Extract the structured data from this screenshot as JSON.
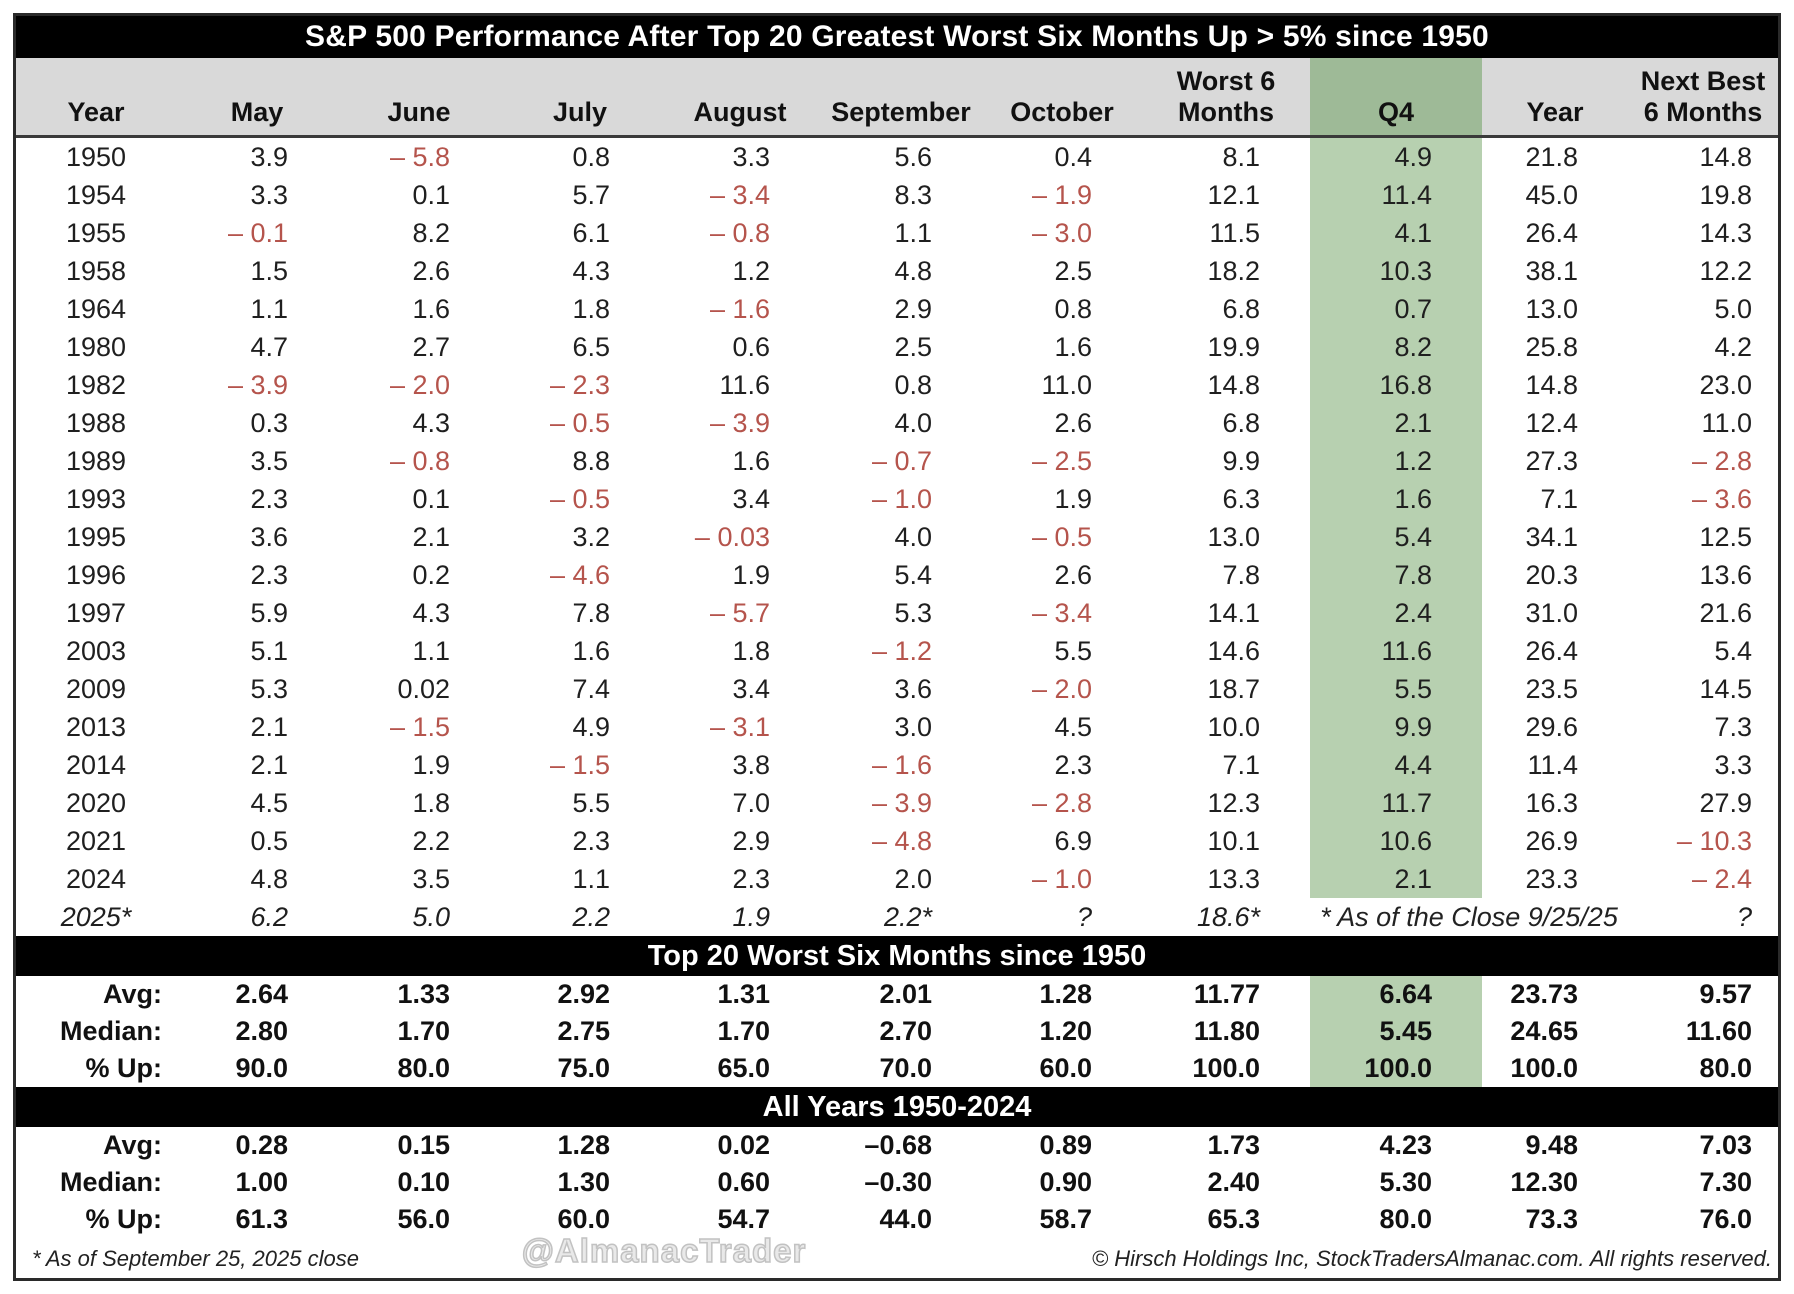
{
  "title": "S&P 500 Performance After Top 20 Greatest Worst Six Months Up > 5% since 1950",
  "colors": {
    "negative_text": "#b5544c",
    "q4_header_highlight": "#9eba97",
    "q4_body_highlight": "#b7d0b0",
    "header_bg": "#d9d9d9",
    "bar_bg": "#000000",
    "bar_text": "#ffffff"
  },
  "chart_data": {
    "type": "table",
    "title": "S&P 500 Performance After Top 20 Greatest Worst Six Months Up > 5% since 1950",
    "columns": [
      "Year",
      "May",
      "June",
      "July",
      "August",
      "September",
      "October",
      "Worst 6\nMonths",
      "Q4",
      "Year",
      "Next Best\n6 Months"
    ],
    "highlighted_column": "Q4",
    "rows": [
      {
        "year": "1950",
        "values": [
          "3.9",
          "– 5.8",
          "0.8",
          "3.3",
          "5.6",
          "0.4",
          "8.1",
          "4.9",
          "21.8",
          "14.8"
        ]
      },
      {
        "year": "1954",
        "values": [
          "3.3",
          "0.1",
          "5.7",
          "– 3.4",
          "8.3",
          "– 1.9",
          "12.1",
          "11.4",
          "45.0",
          "19.8"
        ]
      },
      {
        "year": "1955",
        "values": [
          "– 0.1",
          "8.2",
          "6.1",
          "– 0.8",
          "1.1",
          "– 3.0",
          "11.5",
          "4.1",
          "26.4",
          "14.3"
        ]
      },
      {
        "year": "1958",
        "values": [
          "1.5",
          "2.6",
          "4.3",
          "1.2",
          "4.8",
          "2.5",
          "18.2",
          "10.3",
          "38.1",
          "12.2"
        ]
      },
      {
        "year": "1964",
        "values": [
          "1.1",
          "1.6",
          "1.8",
          "– 1.6",
          "2.9",
          "0.8",
          "6.8",
          "0.7",
          "13.0",
          "5.0"
        ]
      },
      {
        "year": "1980",
        "values": [
          "4.7",
          "2.7",
          "6.5",
          "0.6",
          "2.5",
          "1.6",
          "19.9",
          "8.2",
          "25.8",
          "4.2"
        ]
      },
      {
        "year": "1982",
        "values": [
          "– 3.9",
          "– 2.0",
          "– 2.3",
          "11.6",
          "0.8",
          "11.0",
          "14.8",
          "16.8",
          "14.8",
          "23.0"
        ]
      },
      {
        "year": "1988",
        "values": [
          "0.3",
          "4.3",
          "– 0.5",
          "– 3.9",
          "4.0",
          "2.6",
          "6.8",
          "2.1",
          "12.4",
          "11.0"
        ]
      },
      {
        "year": "1989",
        "values": [
          "3.5",
          "– 0.8",
          "8.8",
          "1.6",
          "– 0.7",
          "– 2.5",
          "9.9",
          "1.2",
          "27.3",
          "– 2.8"
        ]
      },
      {
        "year": "1993",
        "values": [
          "2.3",
          "0.1",
          "– 0.5",
          "3.4",
          "– 1.0",
          "1.9",
          "6.3",
          "1.6",
          "7.1",
          "– 3.6"
        ]
      },
      {
        "year": "1995",
        "values": [
          "3.6",
          "2.1",
          "3.2",
          "– 0.03",
          "4.0",
          "– 0.5",
          "13.0",
          "5.4",
          "34.1",
          "12.5"
        ]
      },
      {
        "year": "1996",
        "values": [
          "2.3",
          "0.2",
          "– 4.6",
          "1.9",
          "5.4",
          "2.6",
          "7.8",
          "7.8",
          "20.3",
          "13.6"
        ]
      },
      {
        "year": "1997",
        "values": [
          "5.9",
          "4.3",
          "7.8",
          "– 5.7",
          "5.3",
          "– 3.4",
          "14.1",
          "2.4",
          "31.0",
          "21.6"
        ]
      },
      {
        "year": "2003",
        "values": [
          "5.1",
          "1.1",
          "1.6",
          "1.8",
          "– 1.2",
          "5.5",
          "14.6",
          "11.6",
          "26.4",
          "5.4"
        ]
      },
      {
        "year": "2009",
        "values": [
          "5.3",
          "0.02",
          "7.4",
          "3.4",
          "3.6",
          "– 2.0",
          "18.7",
          "5.5",
          "23.5",
          "14.5"
        ]
      },
      {
        "year": "2013",
        "values": [
          "2.1",
          "– 1.5",
          "4.9",
          "– 3.1",
          "3.0",
          "4.5",
          "10.0",
          "9.9",
          "29.6",
          "7.3"
        ]
      },
      {
        "year": "2014",
        "values": [
          "2.1",
          "1.9",
          "– 1.5",
          "3.8",
          "– 1.6",
          "2.3",
          "7.1",
          "4.4",
          "11.4",
          "3.3"
        ]
      },
      {
        "year": "2020",
        "values": [
          "4.5",
          "1.8",
          "5.5",
          "7.0",
          "– 3.9",
          "– 2.8",
          "12.3",
          "11.7",
          "16.3",
          "27.9"
        ]
      },
      {
        "year": "2021",
        "values": [
          "0.5",
          "2.2",
          "2.3",
          "2.9",
          "– 4.8",
          "6.9",
          "10.1",
          "10.6",
          "26.9",
          "– 10.3"
        ]
      },
      {
        "year": "2024",
        "values": [
          "4.8",
          "3.5",
          "1.1",
          "2.3",
          "2.0",
          "– 1.0",
          "13.3",
          "2.1",
          "23.3",
          "– 2.4"
        ]
      },
      {
        "year": "2025*",
        "values": [
          "6.2",
          "5.0",
          "2.2",
          "1.9",
          "2.2*",
          "?",
          "18.6*"
        ],
        "annotation": "* As of the Close 9/25/25",
        "tail": [
          "?"
        ],
        "italic": true,
        "no_q4_highlight": true
      }
    ],
    "sections": [
      {
        "label": "Top 20 Worst Six Months since 1950",
        "q4_highlight": true,
        "rows": [
          {
            "label": "Avg:",
            "values": [
              "2.64",
              "1.33",
              "2.92",
              "1.31",
              "2.01",
              "1.28",
              "11.77",
              "6.64",
              "23.73",
              "9.57"
            ]
          },
          {
            "label": "Median:",
            "values": [
              "2.80",
              "1.70",
              "2.75",
              "1.70",
              "2.70",
              "1.20",
              "11.80",
              "5.45",
              "24.65",
              "11.60"
            ]
          },
          {
            "label": "% Up:",
            "values": [
              "90.0",
              "80.0",
              "75.0",
              "65.0",
              "70.0",
              "60.0",
              "100.0",
              "100.0",
              "100.0",
              "80.0"
            ]
          }
        ]
      },
      {
        "label": "All Years 1950-2024",
        "q4_highlight": false,
        "rows": [
          {
            "label": "Avg:",
            "values": [
              "0.28",
              "0.15",
              "1.28",
              "0.02",
              "–0.68",
              "0.89",
              "1.73",
              "4.23",
              "9.48",
              "7.03"
            ]
          },
          {
            "label": "Median:",
            "values": [
              "1.00",
              "0.10",
              "1.30",
              "0.60",
              "–0.30",
              "0.90",
              "2.40",
              "5.30",
              "12.30",
              "7.30"
            ]
          },
          {
            "label": "% Up:",
            "values": [
              "61.3",
              "56.0",
              "60.0",
              "54.7",
              "44.0",
              "58.7",
              "65.3",
              "80.0",
              "73.3",
              "76.0"
            ]
          }
        ]
      }
    ]
  },
  "footer": {
    "note_left": "* As of September 25, 2025 close",
    "watermark": "@AlmanacTrader",
    "copyright": "© Hirsch Holdings Inc, StockTradersAlmanac.com. All rights reserved."
  }
}
